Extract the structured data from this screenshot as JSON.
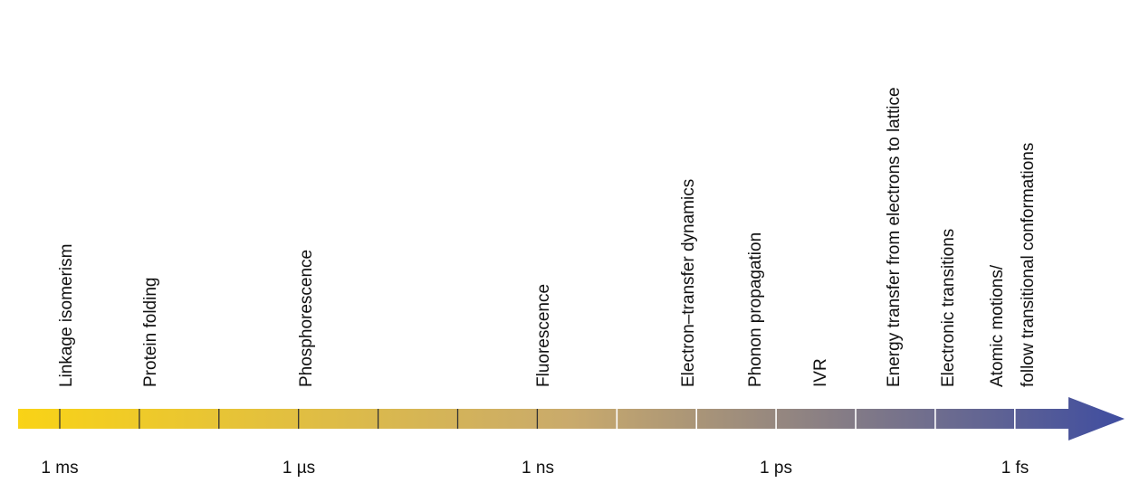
{
  "process_labels": [
    [
      "Linkage isomerism"
    ],
    [
      "Protein folding"
    ],
    [
      "Phosphorescence"
    ],
    [
      "Fluorescence"
    ],
    [
      "Electron–transfer dynamics"
    ],
    [
      "Phonon propagation"
    ],
    [
      "IVR"
    ],
    [
      "Energy transfer from electrons to lattice"
    ],
    [
      "Electronic transitions"
    ],
    [
      "Atomic motions/",
      "follow transitional conformations"
    ]
  ],
  "scale_labels": [
    "1 ms",
    "1 µs",
    "1 ns",
    "1 ps",
    "1 fs"
  ],
  "colors": {
    "gradient_start": "#f9d316",
    "gradient_mid": "#c9aa6c",
    "gradient_end": "#3f4da0",
    "tick_dark": "#333333",
    "tick_light": "#ffffff"
  }
}
